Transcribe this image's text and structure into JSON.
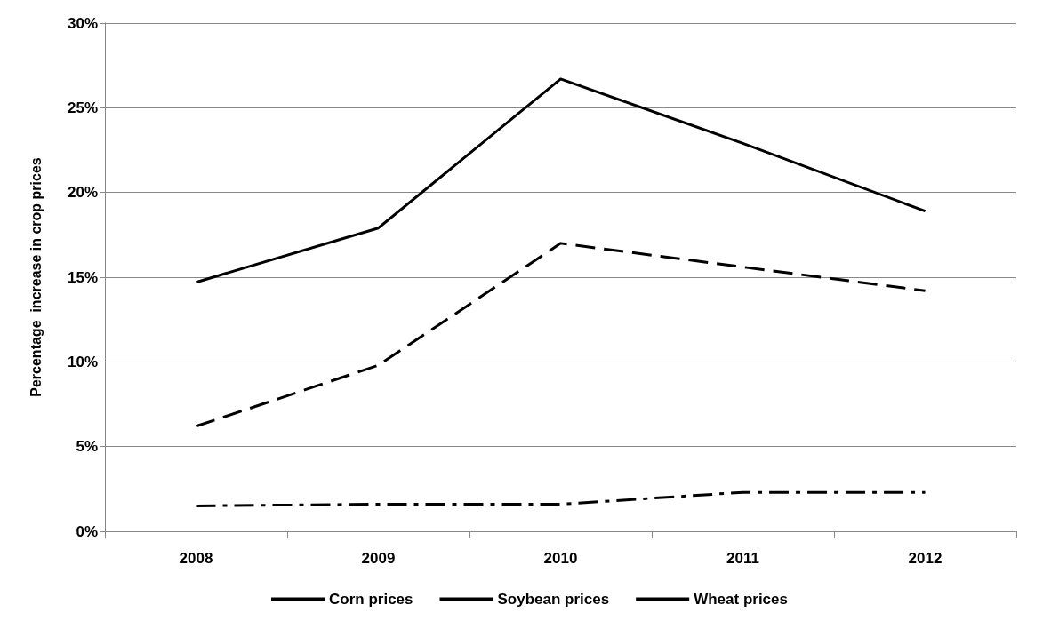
{
  "chart_data": {
    "type": "line",
    "ylabel": "Percentage  increase in crop prices",
    "categories": [
      "2008",
      "2009",
      "2010",
      "2011",
      "2012"
    ],
    "series": [
      {
        "name": "Corn prices",
        "color": "#000000",
        "line_style": "solid",
        "values": [
          14.7,
          17.9,
          26.7,
          22.9,
          18.9
        ]
      },
      {
        "name": "Soybean prices",
        "color": "#000000",
        "line_style": "dashed",
        "values": [
          6.2,
          9.8,
          17.0,
          15.6,
          14.2
        ]
      },
      {
        "name": "Wheat prices",
        "color": "#000000",
        "line_style": "dashdot",
        "values": [
          1.5,
          1.6,
          1.6,
          2.3,
          2.3
        ]
      }
    ],
    "ylim": [
      0,
      30
    ],
    "yticks": [
      {
        "value": 0,
        "label": "0%"
      },
      {
        "value": 5,
        "label": "5%"
      },
      {
        "value": 10,
        "label": "10%"
      },
      {
        "value": 15,
        "label": "15%"
      },
      {
        "value": 20,
        "label": "20%"
      },
      {
        "value": 25,
        "label": "25%"
      },
      {
        "value": 30,
        "label": "30%"
      }
    ],
    "grid": "y",
    "legend": "bottom",
    "marker": "none"
  }
}
